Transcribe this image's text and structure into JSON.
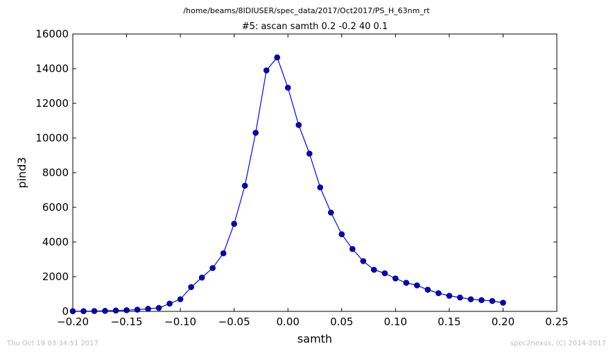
{
  "header": {
    "path": "/home/beams/8IDIUSER/spec_data/2017/Oct2017/PS_H_63nm_rt",
    "scan_title": "#5: ascan  samth 0.2 -0.2  40 0.1"
  },
  "footer": {
    "timestamp": "Thu Oct 19 03:34:51 2017",
    "credit": "spec2nexus, (C) 2014-2017"
  },
  "chart_data": {
    "type": "line",
    "title": "#5: ascan  samth 0.2 -0.2  40 0.1",
    "xlabel": "samth",
    "ylabel": "pind3",
    "xlim": [
      -0.2,
      0.25
    ],
    "ylim": [
      0,
      16000
    ],
    "xticks": [
      -0.2,
      -0.15,
      -0.1,
      -0.05,
      0.0,
      0.05,
      0.1,
      0.15,
      0.2,
      0.25
    ],
    "xtick_labels": [
      "−0.20",
      "−0.15",
      "−0.10",
      "−0.05",
      "0.00",
      "0.05",
      "0.10",
      "0.15",
      "0.20",
      "0.25"
    ],
    "yticks": [
      0,
      2000,
      4000,
      6000,
      8000,
      10000,
      12000,
      14000,
      16000
    ],
    "ytick_labels": [
      "0",
      "2000",
      "4000",
      "6000",
      "8000",
      "10000",
      "12000",
      "14000",
      "16000"
    ],
    "grid": false,
    "color": "#0000ff",
    "marker_color": "#0000cc",
    "series": [
      {
        "x": [
          -0.2,
          -0.19,
          -0.18,
          -0.17,
          -0.16,
          -0.15,
          -0.14,
          -0.13,
          -0.12,
          -0.11,
          -0.1,
          -0.09,
          -0.08,
          -0.07,
          -0.06,
          -0.05,
          -0.04,
          -0.03,
          -0.02,
          -0.01,
          0.0,
          0.01,
          0.02,
          0.03,
          0.04,
          0.05,
          0.06,
          0.07,
          0.08,
          0.09,
          0.1,
          0.11,
          0.12,
          0.13,
          0.14,
          0.15,
          0.16,
          0.17,
          0.18,
          0.19,
          0.2
        ],
        "y": [
          10,
          15,
          20,
          30,
          50,
          70,
          100,
          150,
          200,
          450,
          700,
          1400,
          1950,
          2500,
          3350,
          5050,
          7250,
          10300,
          13900,
          14650,
          12900,
          10750,
          9100,
          7150,
          5700,
          4450,
          3600,
          2900,
          2400,
          2200,
          1900,
          1650,
          1500,
          1250,
          1050,
          900,
          800,
          700,
          650,
          600,
          500
        ]
      }
    ]
  }
}
